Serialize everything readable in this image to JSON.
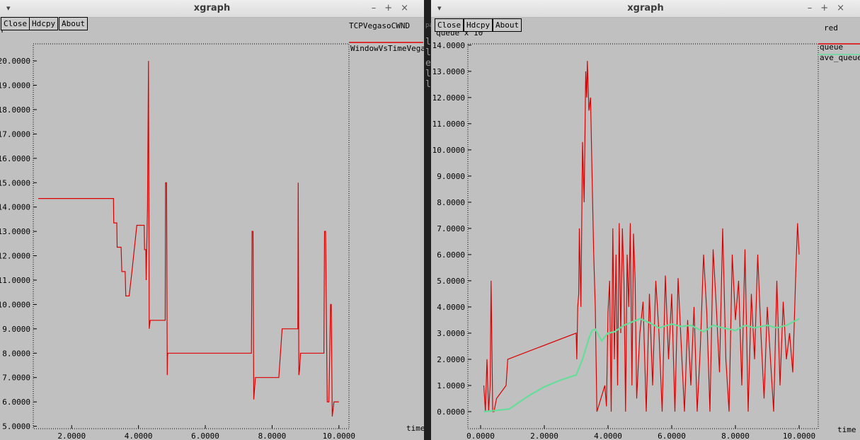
{
  "windows": [
    {
      "title": "xgraph",
      "buttons": [
        "Close",
        "Hdcpy",
        "About"
      ],
      "tb_menu": "▾",
      "tb_ctrls": "–+×"
    },
    {
      "title": "xgraph",
      "buttons": [
        "Close",
        "Hdcpy",
        "About"
      ],
      "tb_menu": "▾",
      "tb_ctrls": "–+×"
    }
  ],
  "gap": {
    "text": "llell",
    "small": "pa"
  },
  "colors": {
    "background": "#c0c0c0",
    "red_series": "#dd0000",
    "green_series": "#66dd99",
    "axis": "#000000"
  },
  "chart_data": [
    {
      "type": "line",
      "title": "TCPVegasoCWND",
      "legend": "WindowVsTimeVegas",
      "xlabel": "time",
      "ylabel": "",
      "xlim": [
        0.85,
        10.3
      ],
      "ylim": [
        4.9,
        20.7
      ],
      "xticks": [
        2,
        4,
        6,
        8,
        10
      ],
      "yticks": [
        5,
        6,
        7,
        8,
        9,
        10,
        11,
        12,
        13,
        14,
        15,
        16,
        17,
        18,
        19,
        20
      ],
      "xtick_labels": [
        "2.0000",
        "4.0000",
        "6.0000",
        "8.0000",
        "10.0000"
      ],
      "ytick_labels": [
        "5.0000",
        "6.0000",
        "7.0000",
        "8.0000",
        "9.0000",
        "10.0000",
        "11.0000",
        "12.0000",
        "13.0000",
        "14.0000",
        "15.0000",
        "16.0000",
        "17.0000",
        "18.0000",
        "19.0000",
        "20.0000"
      ],
      "series": [
        {
          "name": "WindowVsTimeVegas",
          "color": "#dd0000",
          "x": [
            1.0,
            3.25,
            3.26,
            3.35,
            3.36,
            3.48,
            3.5,
            3.6,
            3.62,
            3.72,
            3.8,
            3.95,
            4.05,
            4.17,
            4.18,
            4.22,
            4.23,
            4.27,
            4.3,
            4.32,
            4.35,
            4.37,
            4.5,
            4.8,
            4.81,
            4.84,
            4.86,
            4.87,
            4.88,
            7.38,
            7.4,
            7.43,
            7.45,
            7.5,
            7.52,
            7.6,
            8.2,
            8.3,
            8.6,
            8.77,
            8.78,
            8.8,
            8.82,
            8.85,
            8.9,
            9.55,
            9.57,
            9.6,
            9.65,
            9.66,
            9.7,
            9.75,
            9.77,
            9.8,
            9.85,
            9.86,
            9.9,
            10.0
          ],
          "y": [
            14.35,
            14.35,
            13.35,
            13.35,
            12.35,
            12.35,
            11.35,
            11.35,
            10.35,
            10.35,
            11.3,
            13.25,
            13.25,
            13.25,
            12.25,
            12.25,
            11.0,
            14.0,
            20.0,
            9.0,
            9.35,
            9.35,
            9.35,
            9.35,
            15.0,
            15.0,
            7.1,
            7.9,
            8.0,
            8.0,
            13.0,
            13.0,
            6.1,
            7.0,
            7.0,
            7.0,
            7.0,
            9.0,
            9.0,
            9.0,
            15.0,
            7.1,
            7.3,
            8.0,
            8.0,
            8.0,
            13.0,
            13.0,
            6.0,
            6.0,
            6.0,
            10.0,
            10.0,
            5.4,
            6.0,
            6.0,
            6.0,
            6.0
          ]
        }
      ]
    },
    {
      "type": "line",
      "title": "red",
      "ylabel": "queue x 10^",
      "xlabel": "time",
      "xlim": [
        -0.4,
        10.6
      ],
      "ylim": [
        -0.65,
        14.05
      ],
      "xticks": [
        0,
        2,
        4,
        6,
        8,
        10
      ],
      "yticks": [
        0,
        1,
        2,
        3,
        4,
        5,
        6,
        7,
        8,
        9,
        10,
        11,
        12,
        13,
        14
      ],
      "xtick_labels": [
        "0.0000",
        "2.0000",
        "4.0000",
        "6.0000",
        "8.0000",
        "10.0000"
      ],
      "ytick_labels": [
        "0.0000",
        "1.0000",
        "2.0000",
        "3.0000",
        "4.0000",
        "5.0000",
        "6.0000",
        "7.0000",
        "8.0000",
        "9.0000",
        "10.0000",
        "11.0000",
        "12.0000",
        "13.0000",
        "14.0000"
      ],
      "series": [
        {
          "name": "queue",
          "color": "#dd0000",
          "x": [
            0.1,
            0.15,
            0.2,
            0.25,
            0.3,
            0.33,
            0.38,
            0.42,
            0.5,
            0.8,
            0.85,
            3.0,
            3.02,
            3.05,
            3.08,
            3.1,
            3.15,
            3.2,
            3.25,
            3.28,
            3.3,
            3.33,
            3.35,
            3.4,
            3.45,
            3.5,
            3.55,
            3.6,
            3.65,
            3.9,
            3.95,
            4.0,
            4.05,
            4.1,
            4.15,
            4.2,
            4.25,
            4.3,
            4.35,
            4.4,
            4.45,
            4.5,
            4.55,
            4.6,
            4.65,
            4.7,
            4.75,
            4.8,
            4.85,
            4.9,
            5.0,
            5.1,
            5.2,
            5.3,
            5.4,
            5.5,
            5.6,
            5.7,
            5.8,
            5.9,
            6.0,
            6.1,
            6.2,
            6.3,
            6.4,
            6.5,
            6.6,
            6.7,
            6.8,
            6.9,
            7.0,
            7.1,
            7.2,
            7.3,
            7.4,
            7.5,
            7.6,
            7.7,
            7.8,
            7.9,
            8.0,
            8.1,
            8.2,
            8.3,
            8.4,
            8.5,
            8.6,
            8.7,
            8.8,
            8.9,
            9.0,
            9.1,
            9.2,
            9.3,
            9.4,
            9.5,
            9.6,
            9.7,
            9.8,
            9.9,
            9.95,
            10.0
          ],
          "y": [
            1.0,
            0.0,
            2.0,
            0.0,
            1.0,
            5.0,
            0.0,
            0.0,
            0.5,
            1.0,
            2.0,
            3.0,
            2.0,
            4.0,
            4.5,
            7.0,
            4.0,
            10.3,
            8.0,
            11.0,
            13.0,
            12.0,
            13.4,
            11.5,
            12.0,
            9.0,
            6.0,
            4.0,
            0.0,
            1.0,
            0.2,
            3.8,
            5.0,
            0.0,
            7.0,
            2.0,
            6.0,
            1.0,
            7.2,
            3.0,
            7.0,
            5.0,
            0.0,
            6.0,
            4.0,
            7.2,
            1.0,
            6.8,
            5.0,
            0.5,
            3.0,
            4.2,
            0.0,
            4.5,
            1.0,
            5.0,
            3.0,
            0.0,
            5.2,
            2.0,
            4.5,
            0.0,
            5.1,
            2.5,
            0.0,
            3.5,
            1.0,
            4.0,
            0.0,
            2.5,
            6.0,
            3.8,
            0.0,
            6.2,
            4.0,
            1.5,
            7.0,
            2.0,
            0.0,
            6.0,
            3.5,
            5.0,
            1.0,
            6.2,
            0.0,
            4.5,
            2.0,
            6.0,
            3.0,
            0.5,
            4.0,
            2.0,
            0.0,
            5.0,
            1.0,
            4.2,
            2.0,
            3.0,
            1.5,
            5.5,
            7.2,
            6.0
          ]
        },
        {
          "name": "ave_queue",
          "color": "#66dd99",
          "x": [
            0.1,
            0.5,
            0.9,
            1.5,
            2.0,
            2.5,
            3.0,
            3.2,
            3.4,
            3.5,
            3.6,
            3.8,
            4.0,
            4.2,
            4.5,
            4.8,
            5.0,
            5.3,
            5.6,
            6.0,
            6.3,
            6.6,
            7.0,
            7.3,
            7.6,
            8.0,
            8.3,
            8.6,
            9.0,
            9.3,
            9.6,
            10.0
          ],
          "y": [
            0.0,
            0.05,
            0.1,
            0.6,
            0.95,
            1.2,
            1.4,
            2.0,
            2.8,
            3.1,
            3.15,
            2.7,
            3.0,
            3.05,
            3.3,
            3.45,
            3.55,
            3.4,
            3.2,
            3.35,
            3.25,
            3.3,
            3.05,
            3.3,
            3.2,
            3.1,
            3.3,
            3.2,
            3.3,
            3.2,
            3.3,
            3.55
          ]
        }
      ]
    }
  ]
}
